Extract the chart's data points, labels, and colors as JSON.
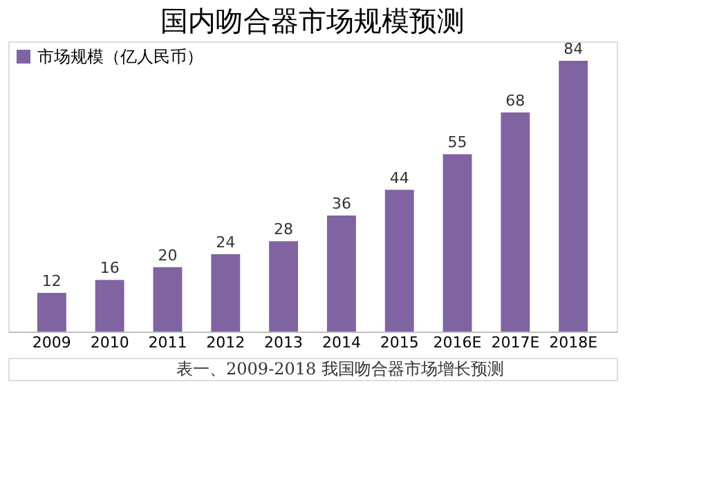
{
  "chart_data": {
    "type": "bar",
    "title": "国内吻合器市场规模预测",
    "categories": [
      "2009",
      "2010",
      "2011",
      "2012",
      "2013",
      "2014",
      "2015",
      "2016E",
      "2017E",
      "2018E"
    ],
    "series": [
      {
        "name": "市场规模（亿人民币）",
        "color": "#8064a2",
        "values": [
          12,
          16,
          20,
          24,
          28,
          36,
          44,
          55,
          68,
          84
        ]
      }
    ],
    "data_labels": true,
    "legend": "top left",
    "grid": false,
    "annotations": [
      "表一、2009-2018 我国吻合器市场增长预测"
    ]
  }
}
